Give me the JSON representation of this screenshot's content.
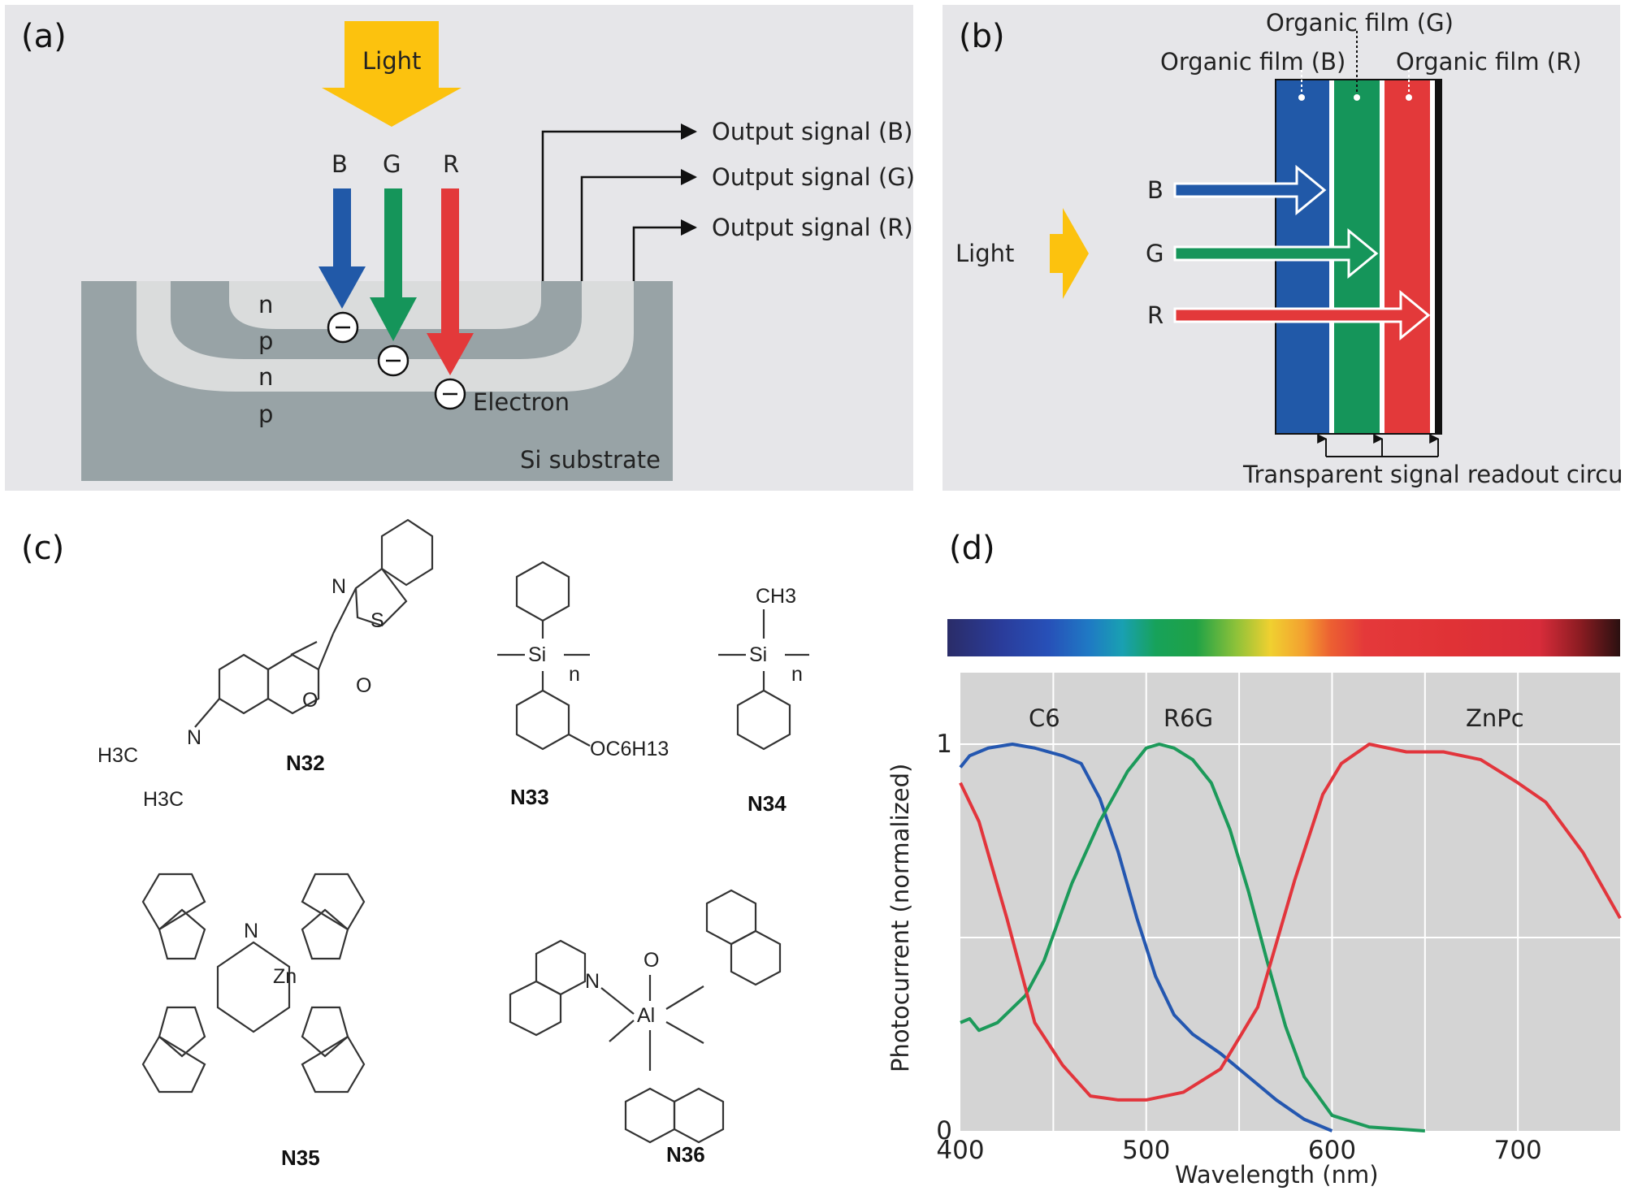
{
  "panel_a": {
    "label": "(a)",
    "light": "Light",
    "channels": [
      {
        "name": "B",
        "color": "#2159a8"
      },
      {
        "name": "G",
        "color": "#15955a"
      },
      {
        "name": "R",
        "color": "#e3393a"
      }
    ],
    "layers": [
      "n",
      "p",
      "n",
      "p"
    ],
    "outputs": [
      "Output signal (B)",
      "Output signal (G)",
      "Output signal (R)"
    ],
    "electron": "Electron",
    "substrate": "Si substrate"
  },
  "panel_b": {
    "label": "(b)",
    "films": [
      "Organic film (B)",
      "Organic film (G)",
      "Organic film (R)"
    ],
    "light": "Light",
    "channels": [
      "B",
      "G",
      "R"
    ],
    "readout": "Transparent signal readout circuit"
  },
  "panel_c": {
    "label": "(c)",
    "molecules": [
      "N32",
      "N33",
      "N34",
      "N35",
      "N36"
    ],
    "atoms": {
      "n32": {
        "n": "N",
        "s": "S",
        "o_ring": "O",
        "o_carbonyl": "O",
        "amine": "N",
        "ethyl1": "H3C",
        "ethyl2": "H3C"
      },
      "n33": {
        "si": "Si",
        "n": "n",
        "sub": "OC6H13"
      },
      "n34": {
        "si": "Si",
        "n": "n",
        "me": "CH3"
      },
      "n35": {
        "zn": "Zn",
        "n": "N"
      },
      "n36": {
        "al": "Al",
        "n": "N",
        "o": "O"
      }
    }
  },
  "panel_d": {
    "label": "(d)"
  },
  "chart_data": {
    "type": "line",
    "xlabel": "Wavelength (nm)",
    "ylabel": "Photocurrent (normalized)",
    "xlim": [
      400,
      755
    ],
    "ylim": [
      0,
      1
    ],
    "xticks": [
      400,
      500,
      600,
      700
    ],
    "yticks": [
      0,
      1
    ],
    "grid": true,
    "series": [
      {
        "name": "C6",
        "color": "#2457b0",
        "x": [
          400,
          405,
          415,
          428,
          440,
          455,
          465,
          475,
          485,
          495,
          505,
          515,
          525,
          540,
          555,
          570,
          585,
          600
        ],
        "y": [
          0.94,
          0.97,
          0.99,
          1.0,
          0.99,
          0.97,
          0.95,
          0.86,
          0.72,
          0.55,
          0.4,
          0.3,
          0.25,
          0.2,
          0.14,
          0.08,
          0.03,
          0.0
        ]
      },
      {
        "name": "R6G",
        "color": "#1c9a5a",
        "x": [
          400,
          405,
          410,
          420,
          435,
          445,
          460,
          475,
          490,
          500,
          507,
          515,
          525,
          535,
          545,
          555,
          565,
          575,
          585,
          600,
          620,
          650
        ],
        "y": [
          0.28,
          0.29,
          0.26,
          0.28,
          0.35,
          0.44,
          0.64,
          0.8,
          0.93,
          0.99,
          1.0,
          0.99,
          0.96,
          0.9,
          0.78,
          0.62,
          0.44,
          0.27,
          0.14,
          0.04,
          0.01,
          0.0
        ]
      },
      {
        "name": "ZnPc",
        "color": "#e2353c",
        "x": [
          400,
          410,
          425,
          440,
          455,
          470,
          485,
          500,
          520,
          540,
          560,
          580,
          595,
          605,
          620,
          640,
          660,
          680,
          700,
          715,
          735,
          755
        ],
        "y": [
          0.9,
          0.8,
          0.55,
          0.28,
          0.17,
          0.09,
          0.08,
          0.08,
          0.1,
          0.16,
          0.32,
          0.65,
          0.87,
          0.95,
          1.0,
          0.98,
          0.98,
          0.96,
          0.9,
          0.85,
          0.72,
          0.55
        ]
      }
    ],
    "annotations": [
      "C6",
      "R6G",
      "ZnPc"
    ]
  }
}
